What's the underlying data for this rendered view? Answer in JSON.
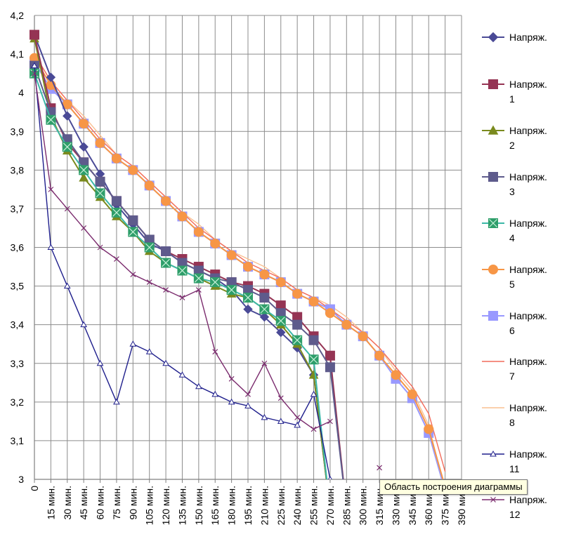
{
  "chart_data": {
    "type": "line",
    "title": "",
    "xlabel": "",
    "ylabel": "",
    "ylim": [
      3,
      4.2
    ],
    "y_ticks": [
      "4,2",
      "4,1",
      "4",
      "3,9",
      "3,8",
      "3,7",
      "3,6",
      "3,5",
      "3,4",
      "3,3",
      "3,2",
      "3,1",
      "3"
    ],
    "categories": [
      "0",
      "15 мин.",
      "30 мин.",
      "45 мин.",
      "60 мин.",
      "75 мин.",
      "90 мин.",
      "105 мин.",
      "120 мин.",
      "135 мин.",
      "150 мин.",
      "165 мин.",
      "180 мин.",
      "195 мин.",
      "210 мин.",
      "225 мин.",
      "240 мин.",
      "255 мин.",
      "270 мин.",
      "285 мин.",
      "300 мин.",
      "315 мин.",
      "330 мин.",
      "345 мин.",
      "360 мин.",
      "375 мин.",
      "390 мин."
    ],
    "grid": true,
    "legend_position": "right",
    "series": [
      {
        "name": "Напряж.",
        "color": "#4a4a96",
        "marker": "diamond",
        "values": [
          4.15,
          4.04,
          3.94,
          3.86,
          3.79,
          3.71,
          3.66,
          3.61,
          3.59,
          3.56,
          3.54,
          3.52,
          3.49,
          3.44,
          3.42,
          3.38,
          3.34,
          3.27,
          2.92,
          null,
          null,
          null,
          null,
          null,
          null,
          null,
          null
        ]
      },
      {
        "name": "Напряж. 1",
        "color": "#953454",
        "marker": "square",
        "values": [
          4.15,
          3.96,
          3.87,
          3.82,
          3.77,
          3.72,
          3.67,
          3.62,
          3.59,
          3.57,
          3.55,
          3.53,
          3.51,
          3.5,
          3.48,
          3.45,
          3.42,
          3.37,
          3.32,
          2.92,
          null,
          null,
          null,
          null,
          null,
          null,
          null
        ]
      },
      {
        "name": "Напряж. 2",
        "color": "#7a8a1e",
        "marker": "triangle",
        "values": [
          4.14,
          3.94,
          3.85,
          3.78,
          3.73,
          3.68,
          3.64,
          3.59,
          3.56,
          3.54,
          3.52,
          3.5,
          3.48,
          3.47,
          3.44,
          3.4,
          3.35,
          3.27,
          2.92,
          null,
          null,
          null,
          null,
          null,
          null,
          null,
          null
        ]
      },
      {
        "name": "Напряж. 3",
        "color": "#5e5b8c",
        "marker": "square",
        "values": [
          4.07,
          3.95,
          3.88,
          3.82,
          3.77,
          3.72,
          3.67,
          3.62,
          3.59,
          3.56,
          3.54,
          3.52,
          3.51,
          3.49,
          3.47,
          3.43,
          3.4,
          3.36,
          3.29,
          2.92,
          null,
          null,
          null,
          null,
          null,
          null,
          null
        ]
      },
      {
        "name": "Напряж. 4",
        "color": "#3cb8a8",
        "marker": "square-x",
        "values": [
          4.05,
          3.93,
          3.86,
          3.8,
          3.74,
          3.69,
          3.64,
          3.6,
          3.56,
          3.54,
          3.52,
          3.51,
          3.49,
          3.47,
          3.44,
          3.41,
          3.36,
          3.31,
          2.92,
          null,
          null,
          null,
          null,
          null,
          null,
          null,
          null
        ]
      },
      {
        "name": "Напряж. 5",
        "color": "#f79646",
        "marker": "circle",
        "values": [
          4.09,
          4.02,
          3.97,
          3.92,
          3.87,
          3.83,
          3.8,
          3.76,
          3.72,
          3.68,
          3.64,
          3.61,
          3.58,
          3.55,
          3.53,
          3.51,
          3.48,
          3.46,
          3.43,
          3.4,
          3.37,
          3.32,
          3.27,
          3.22,
          3.13,
          2.98,
          null
        ]
      },
      {
        "name": "Напряж. 6",
        "color": "#9999ff",
        "marker": "square",
        "values": [
          4.08,
          4.01,
          3.97,
          3.92,
          3.87,
          3.83,
          3.8,
          3.76,
          3.72,
          3.68,
          3.64,
          3.61,
          3.58,
          3.55,
          3.53,
          3.51,
          3.48,
          3.46,
          3.44,
          3.4,
          3.37,
          3.32,
          3.26,
          3.21,
          3.12,
          2.97,
          null
        ]
      },
      {
        "name": "Напряж. 7",
        "color": "#f26b5b",
        "marker": "none",
        "values": [
          4.1,
          4.03,
          3.98,
          3.93,
          3.88,
          3.84,
          3.81,
          3.77,
          3.73,
          3.69,
          3.65,
          3.62,
          3.59,
          3.56,
          3.54,
          3.52,
          3.49,
          3.47,
          3.44,
          3.41,
          3.38,
          3.34,
          3.29,
          3.24,
          3.17,
          3.02,
          null
        ]
      },
      {
        "name": "Напряж. 8",
        "color": "#fac090",
        "marker": "none",
        "values": [
          4.1,
          4.03,
          3.98,
          3.94,
          3.89,
          3.84,
          3.81,
          3.77,
          3.73,
          3.69,
          3.66,
          3.62,
          3.59,
          3.57,
          3.55,
          3.52,
          3.49,
          3.47,
          3.45,
          3.42,
          3.38,
          3.34,
          3.28,
          3.23,
          3.14,
          2.97,
          null
        ]
      },
      {
        "name": "Напряж. 11",
        "color": "#1f1f8c",
        "marker": "open-triangle",
        "values": [
          4.07,
          3.6,
          3.5,
          3.4,
          3.3,
          3.2,
          3.35,
          3.33,
          3.3,
          3.27,
          3.24,
          3.22,
          3.2,
          3.19,
          3.16,
          3.15,
          3.14,
          3.22,
          3.0,
          null,
          null,
          null,
          null,
          null,
          null,
          null,
          null
        ]
      },
      {
        "name": "Напряж. 12",
        "color": "#7b2c6e",
        "marker": "x",
        "values": [
          4.05,
          3.75,
          3.7,
          3.65,
          3.6,
          3.57,
          3.53,
          3.51,
          3.49,
          3.47,
          3.49,
          3.33,
          3.26,
          3.22,
          3.3,
          3.21,
          3.16,
          3.13,
          3.15,
          null,
          null,
          3.03,
          null,
          null,
          null,
          null,
          null
        ]
      }
    ]
  },
  "tooltip": {
    "text": "Область построения диаграммы"
  }
}
